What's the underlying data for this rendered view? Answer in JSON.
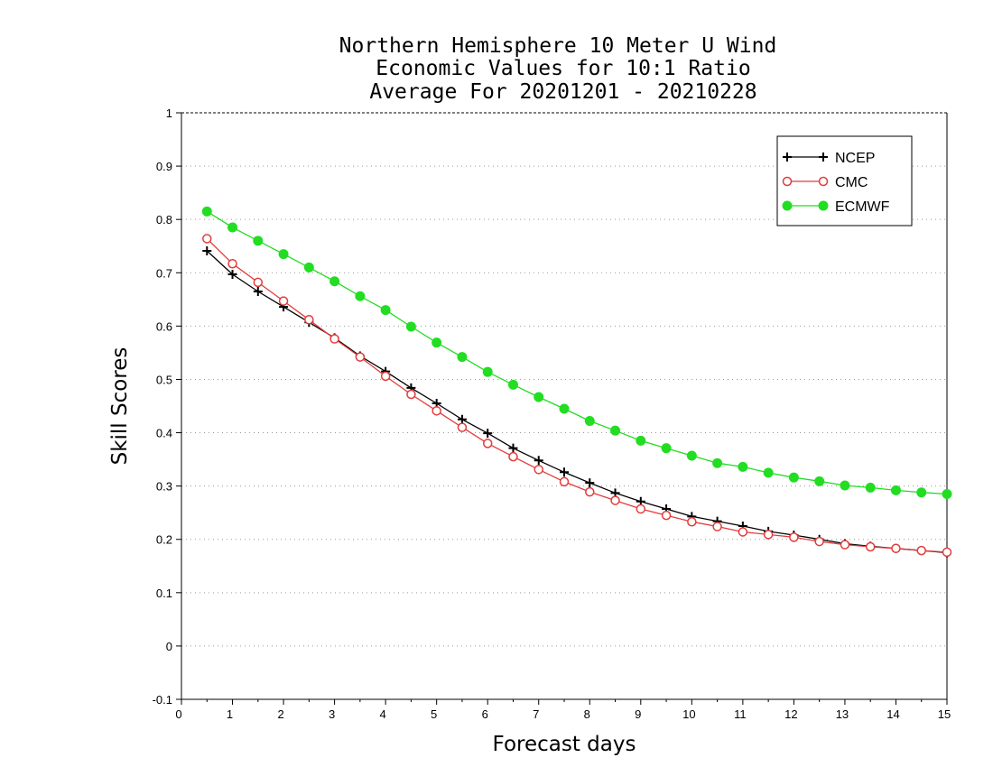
{
  "chart_data": {
    "type": "line",
    "title": [
      "Northern Hemisphere 10 Meter U Wind",
      "Economic Values for 10:1 Ratio",
      "Average For 20201201 - 20210228"
    ],
    "xlabel": "Forecast days",
    "ylabel": "Skill Scores",
    "xlim": [
      0,
      15
    ],
    "ylim": [
      -0.1,
      1
    ],
    "xticks": [
      0,
      1,
      2,
      3,
      4,
      5,
      6,
      7,
      8,
      9,
      10,
      11,
      12,
      13,
      14,
      15
    ],
    "xtick_labels": [
      "0",
      "1",
      "2",
      "3",
      "4",
      "5",
      "6",
      "7",
      "8",
      "9",
      "10",
      "11",
      "12",
      "13",
      "14",
      "15"
    ],
    "yticks": [
      -0.1,
      0,
      0.1,
      0.2,
      0.3,
      0.4,
      0.5,
      0.6,
      0.7,
      0.8,
      0.9,
      1
    ],
    "ytick_labels": [
      "-0.1",
      "0",
      "0.1",
      "0.2",
      "0.3",
      "0.4",
      "0.5",
      "0.6",
      "0.7",
      "0.8",
      "0.9",
      "1"
    ],
    "grid": "horizontal-dotted",
    "legend_position": "top-right",
    "x": [
      0.5,
      1,
      1.5,
      2,
      2.5,
      3,
      3.5,
      4,
      4.5,
      5,
      5.5,
      6,
      6.5,
      7,
      7.5,
      8,
      8.5,
      9,
      9.5,
      10,
      10.5,
      11,
      11.5,
      12,
      12.5,
      13,
      13.5,
      14,
      14.5,
      15
    ],
    "series": [
      {
        "name": "NCEP",
        "color": "#000000",
        "marker": "plus",
        "values": [
          0.741,
          0.697,
          0.665,
          0.636,
          0.607,
          0.578,
          0.544,
          0.515,
          0.484,
          0.455,
          0.425,
          0.399,
          0.371,
          0.348,
          0.326,
          0.306,
          0.287,
          0.271,
          0.257,
          0.243,
          0.234,
          0.225,
          0.215,
          0.208,
          0.2,
          0.192,
          0.187,
          0.183,
          0.179,
          0.175
        ]
      },
      {
        "name": "CMC",
        "color": "#e33b3b",
        "marker": "open-circle",
        "values": [
          0.764,
          0.717,
          0.682,
          0.647,
          0.612,
          0.576,
          0.542,
          0.506,
          0.472,
          0.441,
          0.41,
          0.38,
          0.355,
          0.331,
          0.308,
          0.289,
          0.273,
          0.257,
          0.245,
          0.233,
          0.224,
          0.214,
          0.209,
          0.204,
          0.196,
          0.19,
          0.186,
          0.183,
          0.179,
          0.176
        ]
      },
      {
        "name": "ECMWF",
        "color": "#22dd22",
        "marker": "filled-circle",
        "values": [
          0.815,
          0.785,
          0.76,
          0.735,
          0.71,
          0.684,
          0.656,
          0.63,
          0.599,
          0.569,
          0.542,
          0.514,
          0.49,
          0.467,
          0.445,
          0.422,
          0.404,
          0.385,
          0.371,
          0.357,
          0.343,
          0.336,
          0.325,
          0.316,
          0.309,
          0.301,
          0.297,
          0.292,
          0.288,
          0.285
        ]
      }
    ]
  }
}
